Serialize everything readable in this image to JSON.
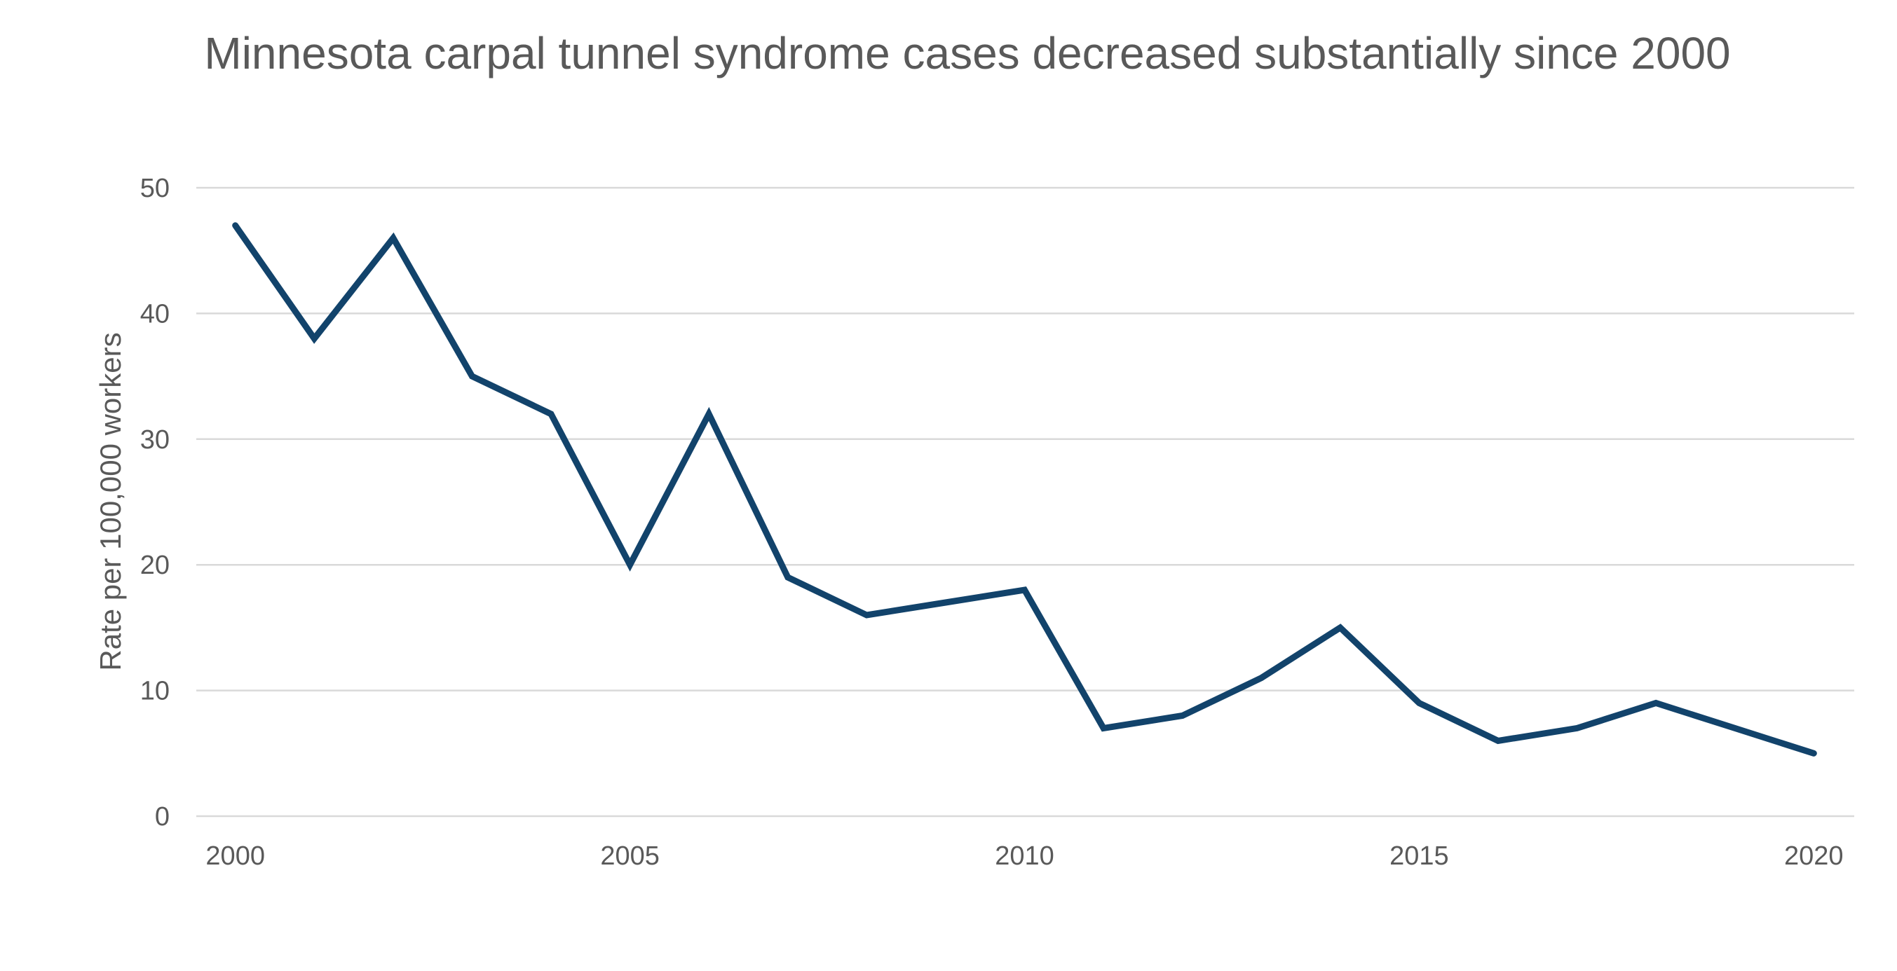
{
  "chart_data": {
    "type": "line",
    "title": "Minnesota carpal tunnel syndrome cases decreased substantially since 2000",
    "xlabel": "",
    "ylabel": "Rate per 100,000 workers",
    "x": [
      2000,
      2001,
      2002,
      2003,
      2004,
      2005,
      2006,
      2007,
      2008,
      2009,
      2010,
      2011,
      2012,
      2013,
      2014,
      2015,
      2016,
      2017,
      2018,
      2019,
      2020
    ],
    "values": [
      47,
      38,
      46,
      35,
      32,
      20,
      32,
      19,
      16,
      17,
      18,
      7,
      8,
      11,
      15,
      9,
      6,
      7,
      9,
      7,
      5
    ],
    "x_ticks": [
      2000,
      2005,
      2010,
      2015,
      2020
    ],
    "y_ticks": [
      50,
      40,
      30,
      20,
      10,
      0
    ],
    "ylim": [
      0,
      50
    ],
    "grid": "horizontal-only",
    "legend": "none",
    "colors": {
      "line": "#12436B",
      "gridline": "#D9D9D9",
      "text": "#595959",
      "background": "#FFFFFF"
    }
  }
}
